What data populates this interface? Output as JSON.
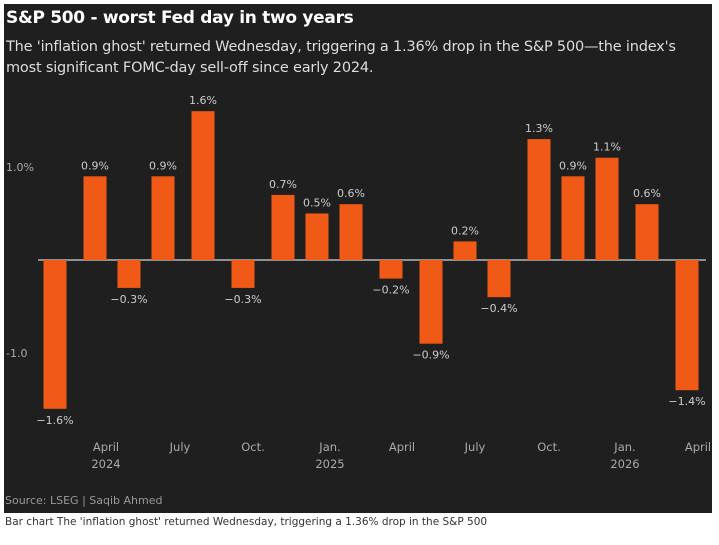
{
  "title": "S&P 500 - worst Fed day in two years",
  "subtitle": "The 'inflation ghost' returned Wednesday, triggering a 1.36% drop in the S&P 500—the index's most significant FOMC-day sell-off since early 2024.",
  "source": "Source: LSEG  | Saqib Ahmed",
  "caption": "Bar chart The 'inflation ghost' returned Wednesday, triggering a 1.36% drop in the S&P 500",
  "colors": {
    "bar": "#f05a16",
    "background": "#1f1f1f"
  },
  "chart_data": {
    "type": "bar",
    "values": [
      -1.6,
      0.9,
      -0.3,
      0.9,
      1.6,
      -0.3,
      0.7,
      0.5,
      0.6,
      -0.2,
      -0.9,
      0.2,
      -0.4,
      1.3,
      0.9,
      1.1,
      0.6,
      -1.4
    ],
    "data_labels": [
      "−1.6%",
      "0.9%",
      "−0.3%",
      "0.9%",
      "1.6%",
      "−0.3%",
      "0.7%",
      "0.5%",
      "0.6%",
      "−0.2%",
      "−0.9%",
      "0.2%",
      "−0.4%",
      "1.3%",
      "0.9%",
      "1.1%",
      "0.6%",
      "−1.4%"
    ],
    "y_ticks": [
      {
        "value": 1.0,
        "label": "1.0%"
      },
      {
        "value": -1.0,
        "label": "-1.0"
      }
    ],
    "x_ticks": [
      [
        "April",
        "2024"
      ],
      [
        "July",
        ""
      ],
      [
        "Oct.",
        ""
      ],
      [
        "Jan.",
        "2025"
      ],
      [
        "April",
        ""
      ],
      [
        "July",
        ""
      ],
      [
        "Oct.",
        ""
      ],
      [
        "Jan.",
        "2026"
      ],
      [
        "April",
        ""
      ]
    ],
    "ylim": [
      -1.9,
      1.9
    ],
    "grid": false
  }
}
